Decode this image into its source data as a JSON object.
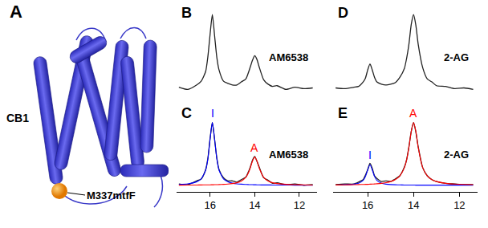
{
  "panel_a": {
    "panel": "A",
    "protein": "CB1",
    "site": "M337mtfF"
  },
  "chart_data": [
    {
      "type": "line",
      "panel": "B",
      "title": "AM6538",
      "grid": false,
      "tick_labels": false,
      "xlim": [
        17.5,
        11.2
      ],
      "ylim": [
        -0.1,
        1.15
      ],
      "x": [
        17.4,
        17.0,
        16.6,
        16.4,
        16.2,
        16.1,
        16.0,
        15.9,
        15.8,
        15.7,
        15.6,
        15.4,
        15.2,
        15.0,
        14.8,
        14.6,
        14.4,
        14.3,
        14.2,
        14.1,
        14.0,
        13.9,
        13.8,
        13.6,
        13.4,
        13.2,
        13.0,
        12.6,
        12.2,
        11.8,
        11.4
      ],
      "series": [
        {
          "color": "#222222",
          "values": [
            0.03,
            0.0,
            0.06,
            0.11,
            0.24,
            0.44,
            0.74,
            1.0,
            0.72,
            0.43,
            0.26,
            0.11,
            0.08,
            0.06,
            0.06,
            0.1,
            0.14,
            0.21,
            0.3,
            0.39,
            0.45,
            0.4,
            0.3,
            0.13,
            0.07,
            0.04,
            0.05,
            0.0,
            0.03,
            0.01,
            0.02
          ]
        }
      ]
    },
    {
      "type": "line",
      "panel": "C",
      "title": "AM6538",
      "grid": false,
      "tick_labels": "x",
      "xlim": [
        17.5,
        11.2
      ],
      "xticks": [
        16,
        14,
        12
      ],
      "ylim": [
        -0.1,
        1.3
      ],
      "x": [
        17.4,
        17.0,
        16.6,
        16.4,
        16.2,
        16.1,
        16.0,
        15.9,
        15.8,
        15.7,
        15.6,
        15.4,
        15.2,
        15.0,
        14.8,
        14.6,
        14.4,
        14.3,
        14.2,
        14.1,
        14.0,
        13.9,
        13.8,
        13.6,
        13.4,
        13.2,
        13.0,
        12.6,
        12.2,
        11.8,
        11.4
      ],
      "series": [
        {
          "color": "#222222",
          "values": [
            0.02,
            0.01,
            0.07,
            0.1,
            0.25,
            0.43,
            0.75,
            1.0,
            0.73,
            0.44,
            0.25,
            0.12,
            0.07,
            0.07,
            0.05,
            0.09,
            0.13,
            0.2,
            0.29,
            0.4,
            0.46,
            0.38,
            0.29,
            0.12,
            0.08,
            0.03,
            0.04,
            0.01,
            0.02,
            0.0,
            0.01
          ]
        },
        {
          "name": "I",
          "color": "#0000ff",
          "values": [
            0.013,
            0.023,
            0.056,
            0.1,
            0.24,
            0.42,
            0.74,
            1,
            0.74,
            0.42,
            0.24,
            0.1,
            0.056,
            0.034,
            0.023,
            0.017,
            0.013,
            0.011,
            0.01,
            0.009,
            0.008,
            0.007,
            0.006,
            0.005,
            0.005,
            0.004,
            0.003,
            0.003,
            0.002,
            0.002,
            0.001
          ]
        },
        {
          "name": "A",
          "color": "#ff0000",
          "values": [
            0.002,
            0.003,
            0.004,
            0.005,
            0.006,
            0.006,
            0.007,
            0.008,
            0.009,
            0.009,
            0.011,
            0.014,
            0.019,
            0.027,
            0.04,
            0.068,
            0.126,
            0.185,
            0.275,
            0.387,
            0.45,
            0.387,
            0.275,
            0.126,
            0.068,
            0.04,
            0.027,
            0.014,
            0.009,
            0.006,
            0.004
          ]
        }
      ]
    },
    {
      "type": "line",
      "panel": "D",
      "title": "2-AG",
      "grid": false,
      "tick_labels": false,
      "xlim": [
        17.5,
        11.2
      ],
      "ylim": [
        -0.1,
        1.15
      ],
      "x": [
        17.4,
        17.0,
        16.6,
        16.4,
        16.2,
        16.1,
        16.0,
        15.9,
        15.8,
        15.7,
        15.6,
        15.4,
        15.2,
        15.0,
        14.8,
        14.6,
        14.4,
        14.3,
        14.2,
        14.1,
        14.0,
        13.9,
        13.8,
        13.6,
        13.4,
        13.2,
        13.0,
        12.6,
        12.2,
        11.8,
        11.4
      ],
      "series": [
        {
          "color": "#222222",
          "values": [
            0.02,
            0.01,
            0.03,
            0.04,
            0.1,
            0.15,
            0.26,
            0.34,
            0.26,
            0.16,
            0.1,
            0.07,
            0.06,
            0.07,
            0.09,
            0.16,
            0.28,
            0.42,
            0.61,
            0.87,
            1.0,
            0.86,
            0.61,
            0.29,
            0.14,
            0.1,
            0.05,
            0.04,
            0.01,
            0.02,
            0.0
          ]
        }
      ]
    },
    {
      "type": "line",
      "panel": "E",
      "title": "2-AG",
      "grid": false,
      "tick_labels": "x",
      "xlim": [
        17.5,
        11.2
      ],
      "xticks": [
        16,
        14,
        12
      ],
      "ylim": [
        -0.1,
        1.3
      ],
      "x": [
        17.4,
        17.0,
        16.6,
        16.4,
        16.2,
        16.1,
        16.0,
        15.9,
        15.8,
        15.7,
        15.6,
        15.4,
        15.2,
        15.0,
        14.8,
        14.6,
        14.4,
        14.3,
        14.2,
        14.1,
        14.0,
        13.9,
        13.8,
        13.6,
        13.4,
        13.2,
        13.0,
        12.6,
        12.2,
        11.8,
        11.4
      ],
      "series": [
        {
          "color": "#222222",
          "values": [
            0.01,
            0.02,
            0.02,
            0.05,
            0.09,
            0.16,
            0.25,
            0.35,
            0.27,
            0.15,
            0.11,
            0.06,
            0.07,
            0.06,
            0.1,
            0.15,
            0.29,
            0.41,
            0.62,
            0.86,
            1.0,
            0.85,
            0.62,
            0.28,
            0.15,
            0.09,
            0.06,
            0.03,
            0.02,
            0.01,
            0.01
          ]
        },
        {
          "name": "I",
          "color": "#0000ff",
          "values": [
            0.004,
            0.008,
            0.018,
            0.033,
            0.079,
            0.139,
            0.244,
            0.33,
            0.244,
            0.139,
            0.079,
            0.033,
            0.018,
            0.011,
            0.008,
            0.006,
            0.004,
            0.004,
            0.003,
            0.003,
            0.003,
            0.002,
            0.002,
            0.002,
            0.002,
            0.001,
            0.001,
            0.001,
            0.001,
            0.001,
            0
          ]
        },
        {
          "name": "A",
          "color": "#ff0000",
          "values": [
            0.005,
            0.007,
            0.009,
            0.011,
            0.013,
            0.014,
            0.015,
            0.017,
            0.019,
            0.021,
            0.024,
            0.031,
            0.042,
            0.059,
            0.089,
            0.15,
            0.28,
            0.41,
            0.61,
            0.86,
            1,
            0.86,
            0.61,
            0.28,
            0.15,
            0.089,
            0.059,
            0.031,
            0.019,
            0.013,
            0.009
          ]
        }
      ]
    }
  ]
}
